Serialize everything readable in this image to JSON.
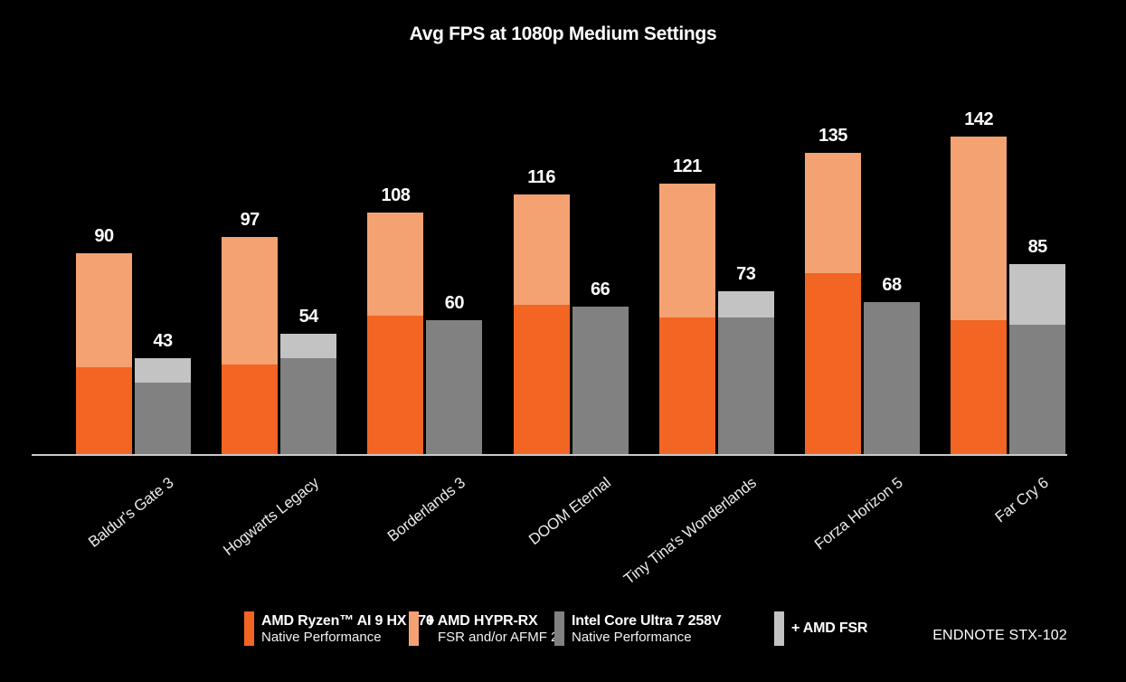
{
  "chart_data": {
    "type": "bar",
    "title": "Avg FPS at 1080p Medium Settings",
    "categories": [
      "Baldur's Gate 3",
      "Hogwarts Legacy",
      "Borderlands 3",
      "DOOM Eternal",
      "Tiny Tina's Wonderlands",
      "Forza Horizon 5",
      "Far Cry 6"
    ],
    "series": [
      {
        "name": "AMD Ryzen™ AI 9 HX 370 — Native Performance",
        "color": "#f26522",
        "values": [
          39,
          40,
          62,
          67,
          61,
          81,
          60
        ]
      },
      {
        "name": "+ AMD HYPR-RX (FSR and/or AFMF 2) — total",
        "color": "#f5a273",
        "values": [
          90,
          97,
          108,
          116,
          121,
          135,
          142
        ]
      },
      {
        "name": "Intel Core Ultra 7 258V — Native Performance",
        "color": "#818181",
        "values": [
          32,
          43,
          60,
          66,
          61,
          68,
          58
        ]
      },
      {
        "name": "+ AMD FSR — total",
        "color": "#c3c3c3",
        "values": [
          43,
          54,
          60,
          66,
          73,
          68,
          85
        ]
      }
    ],
    "value_labels": {
      "amd": [
        90,
        97,
        108,
        116,
        121,
        135,
        142
      ],
      "intel": [
        43,
        54,
        60,
        66,
        73,
        68,
        85
      ]
    },
    "ylabel": "",
    "xlabel": "",
    "ylim": [
      0,
      160
    ],
    "grid": false,
    "legend_position": "bottom"
  },
  "legend": {
    "items": [
      {
        "label": "AMD Ryzen™ AI 9 HX 370",
        "sublabel": "Native Performance",
        "color": "#f26522"
      },
      {
        "label": "+ AMD HYPR-RX",
        "sublabel": "FSR and/or AFMF 2",
        "color": "#f5a273"
      },
      {
        "label": "Intel Core Ultra 7 258V",
        "sublabel": "Native Performance",
        "color": "#818181"
      },
      {
        "label": "+ AMD FSR",
        "sublabel": "",
        "color": "#c3c3c3"
      }
    ]
  },
  "endnote": "ENDNOTE STX-102",
  "colors": {
    "background": "#000000",
    "amd_native": "#f26522",
    "amd_hyprrx": "#f5a273",
    "intel_native": "#818181",
    "intel_fsr": "#c3c3c3",
    "axis_line": "#c9c9c9",
    "text": "#ffffff"
  }
}
